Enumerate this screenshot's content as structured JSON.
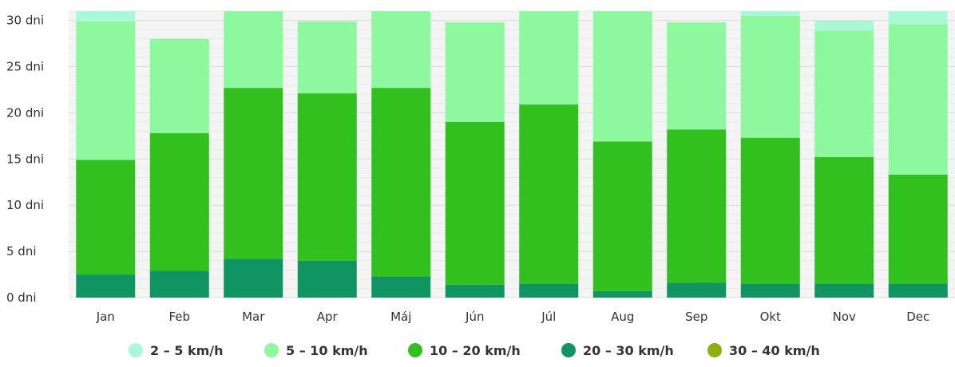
{
  "chart_data": {
    "type": "bar",
    "stacked": true,
    "categories": [
      "Jan",
      "Feb",
      "Mar",
      "Apr",
      "Máj",
      "Jún",
      "Júl",
      "Aug",
      "Sep",
      "Okt",
      "Nov",
      "Dec"
    ],
    "ylim": [
      0,
      31
    ],
    "yticks": [
      0,
      5,
      10,
      15,
      20,
      25,
      30
    ],
    "ytick_labels": [
      "0 dni",
      "5 dni",
      "10 dni",
      "15 dni",
      "20 dni",
      "25 dni",
      "30 dni"
    ],
    "grid": true,
    "legend_position": "bottom",
    "series": [
      {
        "name": "30 – 40 km/h",
        "color": "#8db00f",
        "values": [
          0,
          0,
          0,
          0,
          0,
          0,
          0,
          0,
          0,
          0,
          0,
          0
        ]
      },
      {
        "name": "20 – 30 km/h",
        "color": "#109461",
        "values": [
          2.5,
          2.9,
          4.2,
          4.0,
          2.3,
          1.4,
          1.5,
          0.7,
          1.6,
          1.5,
          1.5,
          1.5
        ]
      },
      {
        "name": "10 – 20 km/h",
        "color": "#31c01e",
        "values": [
          12.4,
          14.9,
          18.5,
          18.1,
          20.4,
          17.6,
          19.4,
          16.2,
          16.6,
          15.8,
          13.7,
          11.8
        ]
      },
      {
        "name": "5 – 10 km/h",
        "color": "#8df89e",
        "values": [
          15.0,
          10.2,
          8.3,
          7.8,
          8.3,
          10.8,
          10.1,
          14.1,
          11.6,
          13.2,
          13.7,
          16.3
        ]
      },
      {
        "name": "2 – 5 km/h",
        "color": "#aaf8d8",
        "values": [
          1.1,
          0,
          0,
          0,
          0,
          0,
          0,
          0,
          0,
          0.5,
          1.1,
          1.4
        ]
      }
    ],
    "legend_order": [
      "2 – 5 km/h",
      "5 – 10 km/h",
      "10 – 20 km/h",
      "20 – 30 km/h",
      "30 – 40 km/h"
    ]
  }
}
